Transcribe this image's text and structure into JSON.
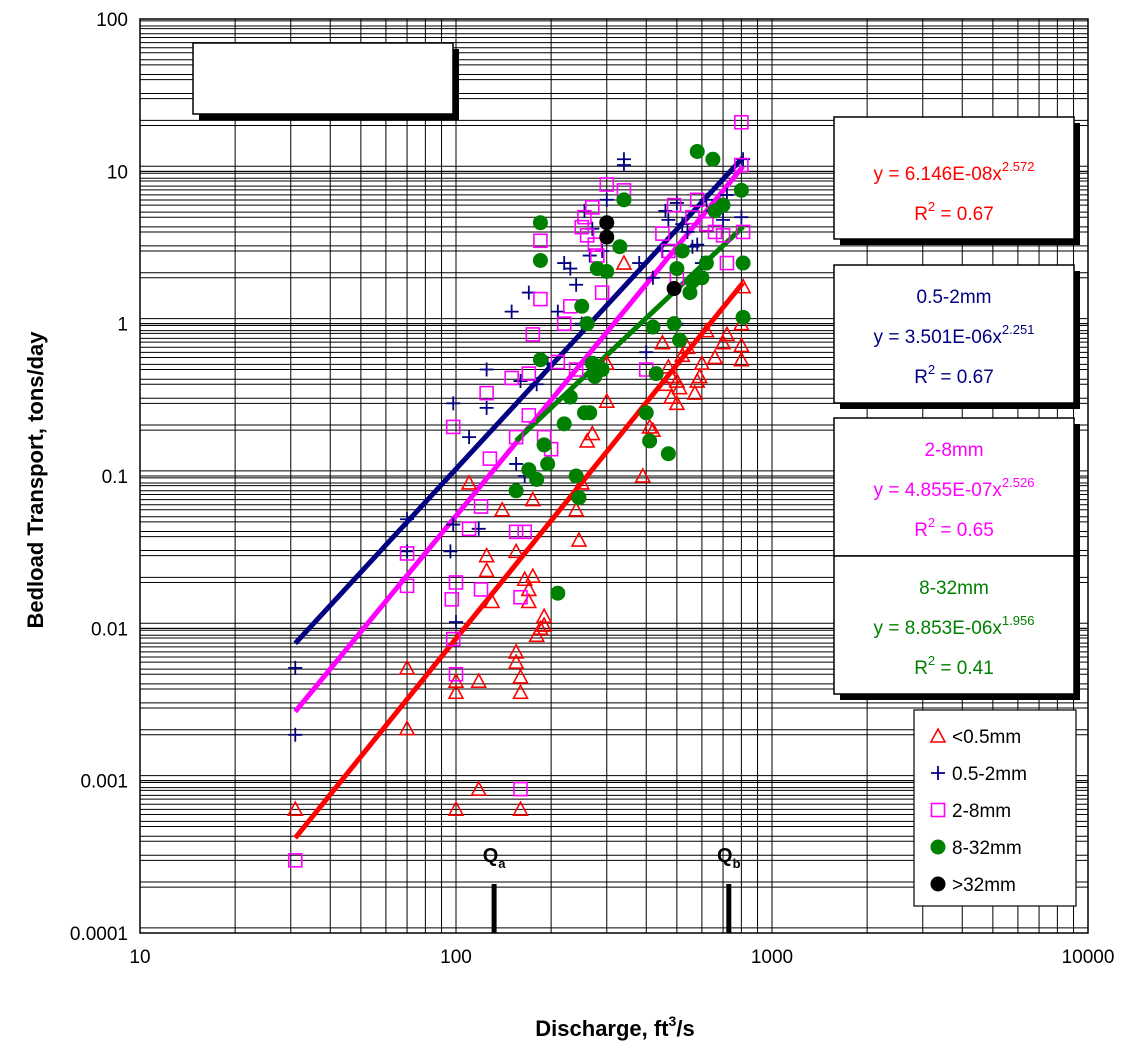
{
  "chart_data": {
    "type": "scatter",
    "title": "",
    "xlabel": "Discharge, ft",
    "xlabel_sup": "3",
    "xlabel_suffix": "/s",
    "ylabel": "Bedload Transport, tons/day",
    "xscale": "log",
    "yscale": "log",
    "xlim": [
      10,
      10000
    ],
    "ylim": [
      0.0001,
      100
    ],
    "x_ticks": [
      "10",
      "100",
      "1000",
      "10000"
    ],
    "y_ticks": [
      "0.0001",
      "0.001",
      "0.01",
      "0.1",
      "1",
      "10",
      "100"
    ],
    "grid": true,
    "legend_position": "bottom-right",
    "markers": [
      {
        "label": "Q",
        "sub": "a",
        "x": 132
      },
      {
        "label": "Q",
        "sub": "b",
        "x": 730
      }
    ],
    "series": [
      {
        "name": "<0.5mm",
        "marker": "triangle",
        "color": "#ff0000",
        "points": [
          [
            31,
            0.00065
          ],
          [
            70,
            0.0055
          ],
          [
            70,
            0.0022
          ],
          [
            100,
            0.0045
          ],
          [
            100,
            0.0038
          ],
          [
            100,
            0.00065
          ],
          [
            118,
            0.0045
          ],
          [
            118,
            0.00088
          ],
          [
            110,
            0.09
          ],
          [
            125,
            0.03
          ],
          [
            125,
            0.024
          ],
          [
            130,
            0.015
          ],
          [
            140,
            0.06
          ],
          [
            155,
            0.032
          ],
          [
            155,
            0.007
          ],
          [
            155,
            0.006
          ],
          [
            160,
            0.0048
          ],
          [
            160,
            0.0038
          ],
          [
            160,
            0.00065
          ],
          [
            165,
            0.021
          ],
          [
            170,
            0.015
          ],
          [
            170,
            0.018
          ],
          [
            175,
            0.022
          ],
          [
            175,
            0.07
          ],
          [
            180,
            0.009
          ],
          [
            185,
            0.01
          ],
          [
            190,
            0.012
          ],
          [
            190,
            0.0105
          ],
          [
            240,
            0.06
          ],
          [
            245,
            0.038
          ],
          [
            250,
            0.09
          ],
          [
            260,
            0.17
          ],
          [
            270,
            0.19
          ],
          [
            300,
            0.31
          ],
          [
            300,
            0.55
          ],
          [
            340,
            2.5
          ],
          [
            390,
            0.1
          ],
          [
            410,
            0.21
          ],
          [
            420,
            0.2
          ],
          [
            450,
            0.75
          ],
          [
            460,
            0.4
          ],
          [
            470,
            0.52
          ],
          [
            480,
            0.33
          ],
          [
            480,
            0.45
          ],
          [
            500,
            0.3
          ],
          [
            500,
            0.42
          ],
          [
            510,
            0.38
          ],
          [
            520,
            0.62
          ],
          [
            540,
            0.7
          ],
          [
            570,
            0.35
          ],
          [
            580,
            0.42
          ],
          [
            590,
            0.45
          ],
          [
            600,
            0.55
          ],
          [
            620,
            0.9
          ],
          [
            660,
            0.6
          ],
          [
            700,
            0.75
          ],
          [
            720,
            0.85
          ],
          [
            800,
            1.0
          ],
          [
            800,
            0.72
          ],
          [
            800,
            0.58
          ],
          [
            810,
            1.75
          ]
        ],
        "fit": {
          "a": 6.146e-08,
          "b": 2.572,
          "xmin": 31,
          "xmax": 810
        },
        "equation": "y = 6.146E-08x",
        "exponent": "2.572",
        "r2": "= 0.67",
        "box_title": ""
      },
      {
        "name": "0.5-2mm",
        "marker": "plus",
        "color": "#000080",
        "points": [
          [
            31,
            0.0055
          ],
          [
            31,
            0.002
          ],
          [
            70,
            0.052
          ],
          [
            70,
            0.032
          ],
          [
            96,
            0.032
          ],
          [
            98,
            0.3
          ],
          [
            98,
            0.048
          ],
          [
            100,
            0.011
          ],
          [
            110,
            0.18
          ],
          [
            118,
            0.045
          ],
          [
            125,
            0.5
          ],
          [
            125,
            0.28
          ],
          [
            150,
            1.2
          ],
          [
            155,
            0.12
          ],
          [
            160,
            0.42
          ],
          [
            165,
            0.1
          ],
          [
            170,
            1.6
          ],
          [
            180,
            0.4
          ],
          [
            195,
            0.55
          ],
          [
            210,
            1.2
          ],
          [
            220,
            2.5
          ],
          [
            230,
            2.3
          ],
          [
            240,
            1.8
          ],
          [
            250,
            1.0
          ],
          [
            255,
            5.5
          ],
          [
            265,
            2.8
          ],
          [
            270,
            4.2
          ],
          [
            290,
            3.0
          ],
          [
            300,
            6.5
          ],
          [
            340,
            12
          ],
          [
            340,
            11
          ],
          [
            380,
            2.5
          ],
          [
            400,
            0.65
          ],
          [
            420,
            2.0
          ],
          [
            450,
            3.0
          ],
          [
            460,
            5.5
          ],
          [
            470,
            4.8
          ],
          [
            500,
            6.2
          ],
          [
            500,
            1.0
          ],
          [
            520,
            4.5
          ],
          [
            540,
            4.0
          ],
          [
            560,
            3.2
          ],
          [
            580,
            3.3
          ],
          [
            600,
            2.5
          ],
          [
            620,
            6.5
          ],
          [
            650,
            5.5
          ],
          [
            700,
            4.8
          ],
          [
            720,
            7.0
          ],
          [
            800,
            5.0
          ],
          [
            810,
            12
          ]
        ],
        "fit": {
          "a": 3.501e-06,
          "b": 2.251,
          "xmin": 31,
          "xmax": 810
        },
        "equation": "y = 3.501E-06x",
        "exponent": "2.251",
        "r2": "= 0.67",
        "box_title": "0.5-2mm"
      },
      {
        "name": "2-8mm",
        "marker": "square",
        "color": "#ff00ff",
        "points": [
          [
            31,
            0.0003
          ],
          [
            70,
            0.031
          ],
          [
            70,
            0.019
          ],
          [
            97,
            0.0155
          ],
          [
            98,
            0.0085
          ],
          [
            98,
            0.21
          ],
          [
            100,
            0.02
          ],
          [
            100,
            0.005
          ],
          [
            110,
            0.045
          ],
          [
            120,
            0.063
          ],
          [
            120,
            0.018
          ],
          [
            125,
            0.35
          ],
          [
            128,
            0.13
          ],
          [
            150,
            0.44
          ],
          [
            155,
            0.18
          ],
          [
            155,
            0.043
          ],
          [
            160,
            0.016
          ],
          [
            160,
            0.00088
          ],
          [
            165,
            0.043
          ],
          [
            170,
            0.47
          ],
          [
            170,
            0.25
          ],
          [
            175,
            0.85
          ],
          [
            185,
            1.45
          ],
          [
            185,
            3.5
          ],
          [
            190,
            0.18
          ],
          [
            200,
            0.15
          ],
          [
            210,
            0.56
          ],
          [
            220,
            1.0
          ],
          [
            230,
            1.3
          ],
          [
            240,
            0.5
          ],
          [
            250,
            4.3
          ],
          [
            255,
            5.0
          ],
          [
            260,
            3.8
          ],
          [
            270,
            5.8
          ],
          [
            275,
            3.3
          ],
          [
            280,
            2.8
          ],
          [
            290,
            1.6
          ],
          [
            300,
            8.2
          ],
          [
            340,
            7.5
          ],
          [
            400,
            0.5
          ],
          [
            450,
            3.9
          ],
          [
            470,
            3.0
          ],
          [
            490,
            6.0
          ],
          [
            500,
            2.0
          ],
          [
            560,
            5.0
          ],
          [
            580,
            6.5
          ],
          [
            620,
            4.5
          ],
          [
            660,
            4.0
          ],
          [
            700,
            3.8
          ],
          [
            720,
            2.5
          ],
          [
            800,
            21
          ],
          [
            800,
            11
          ],
          [
            810,
            4.0
          ]
        ],
        "fit": {
          "a": 4.855e-07,
          "b": 2.526,
          "xmin": 31,
          "xmax": 810
        },
        "equation": "y = 4.855E-07x",
        "exponent": "2.526",
        "r2": "= 0.65",
        "box_title": "2-8mm"
      },
      {
        "name": "8-32mm",
        "marker": "circle",
        "color": "#008000",
        "points": [
          [
            155,
            0.08
          ],
          [
            170,
            0.11
          ],
          [
            180,
            0.095
          ],
          [
            185,
            4.6
          ],
          [
            185,
            2.6
          ],
          [
            185,
            0.58
          ],
          [
            190,
            0.16
          ],
          [
            195,
            0.12
          ],
          [
            210,
            0.017
          ],
          [
            220,
            0.22
          ],
          [
            230,
            0.33
          ],
          [
            240,
            0.1
          ],
          [
            245,
            0.072
          ],
          [
            250,
            1.3
          ],
          [
            255,
            0.26
          ],
          [
            260,
            1.0
          ],
          [
            265,
            0.26
          ],
          [
            270,
            0.55
          ],
          [
            275,
            0.45
          ],
          [
            280,
            2.3
          ],
          [
            290,
            0.5
          ],
          [
            300,
            2.2
          ],
          [
            330,
            3.2
          ],
          [
            340,
            6.5
          ],
          [
            400,
            0.26
          ],
          [
            410,
            0.17
          ],
          [
            420,
            0.95
          ],
          [
            430,
            0.47
          ],
          [
            470,
            0.14
          ],
          [
            490,
            1.0
          ],
          [
            500,
            2.3
          ],
          [
            510,
            0.78
          ],
          [
            520,
            3.0
          ],
          [
            550,
            1.6
          ],
          [
            560,
            1.9
          ],
          [
            580,
            13.5
          ],
          [
            600,
            2.0
          ],
          [
            620,
            2.5
          ],
          [
            650,
            12
          ],
          [
            660,
            5.5
          ],
          [
            700,
            6.0
          ],
          [
            800,
            7.5
          ],
          [
            810,
            2.5
          ],
          [
            810,
            1.1
          ]
        ],
        "fit": {
          "a": 8.853e-06,
          "b": 1.956,
          "xmin": 155,
          "xmax": 810
        },
        "equation": "y = 8.853E-06x",
        "exponent": "1.956",
        "r2": "= 0.41",
        "box_title": "8-32mm"
      },
      {
        "name": ">32mm",
        "marker": "circle",
        "color": "#000000",
        "points": [
          [
            300,
            4.6
          ],
          [
            300,
            3.7
          ],
          [
            490,
            1.7
          ]
        ],
        "fit": null
      }
    ]
  },
  "page": {
    "empty_box_text": ""
  }
}
